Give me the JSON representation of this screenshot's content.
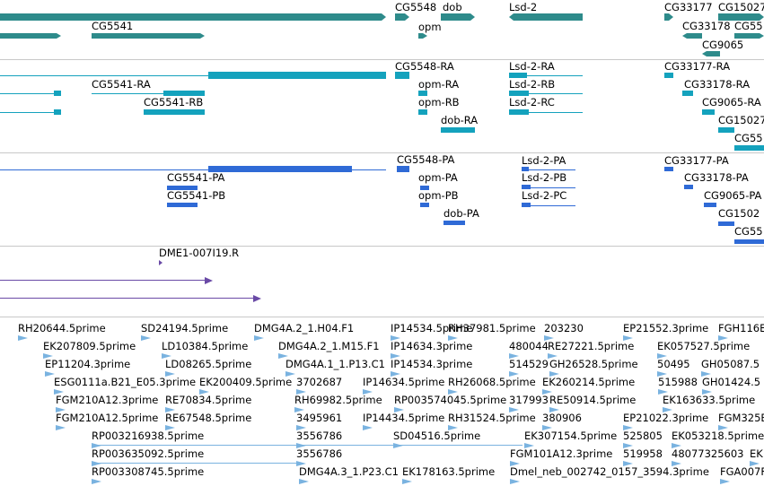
{
  "colors": {
    "gene": "#2e8b8b",
    "mrna": "#14a2bd",
    "protein": "#2f6ad6",
    "clone": "#6a4aa6",
    "est": "#7ab3e0"
  },
  "genes": {
    "labels": [
      "CG5548",
      "dob",
      "Lsd-2",
      "CG33177",
      "CG15027",
      "CG5541",
      "opm",
      "CG33178",
      "CG55",
      "CG9065"
    ]
  },
  "transcripts": {
    "labels": [
      "CG5548-RA",
      "Lsd-2-RA",
      "CG33177-RA",
      "CG5541-RA",
      "opm-RA",
      "Lsd-2-RB",
      "CG33178-RA",
      "CG5541-RB",
      "opm-RB",
      "Lsd-2-RC",
      "CG9065-RA",
      "dob-RA",
      "CG15027",
      "CG55"
    ]
  },
  "proteins": {
    "labels": [
      "CG5548-PA",
      "Lsd-2-PA",
      "CG33177-PA",
      "CG5541-PA",
      "opm-PA",
      "Lsd-2-PB",
      "CG33178-PA",
      "CG5541-PB",
      "opm-PB",
      "Lsd-2-PC",
      "CG9065-PA",
      "dob-PA",
      "CG1502",
      "CG55"
    ]
  },
  "clones": {
    "labels": [
      "DME1-007I19.R"
    ]
  },
  "ests": {
    "labels": [
      "RH20644.5prime",
      "SD24194.5prime",
      "DMG4A.2_1.H04.F1",
      "IP14534.5prime",
      "RH37981.5prime",
      "203230",
      "EP21552.3prime",
      "FGH116E",
      "EK207809.5prime",
      "LD10384.5prime",
      "DMG4A.2_1.M15.F1",
      "IP14634.3prime",
      "480044",
      "RE27221.5prime",
      "EK057527.5prime",
      "EP11204.3prime",
      "LD08265.5prime",
      "DMG4A.1_1.P13.C1",
      "IP14534.3prime",
      "514529",
      "GH26528.5prime",
      "50495",
      "GH05087.5",
      "ESG0111a.B21_E05.3prime",
      "EK200409.5prime",
      "3702687",
      "IP14634.5prime",
      "RH26068.5prime",
      "EK260214.5prime",
      "515988",
      "GH01424.5",
      "FGM210A12.3prime",
      "RE70834.5prime",
      "RH69982.5prime",
      "RP003574045.5prime",
      "317993",
      "RE50914.5prime",
      "EK163633.5prime",
      "FGM210A12.5prime",
      "RE67548.5prime",
      "3495961",
      "IP14434.5prime",
      "RH31524.5prime",
      "380906",
      "EP21022.3prime",
      "FGM325B",
      "RP003216938.5prime",
      "3556786",
      "SD04516.5prime",
      "EK307154.5prime",
      "525805",
      "EK053218.5prime",
      "RP003635092.5prime",
      "FGM101A12.3prime",
      "519958",
      "48077325603",
      "EK",
      "RP003308745.5prime",
      "DMG4A.3_1.P23.C1",
      "EK178163.5prime",
      "Dmel_neb_002742_0157_3594.3prime",
      "FGA007F"
    ]
  }
}
